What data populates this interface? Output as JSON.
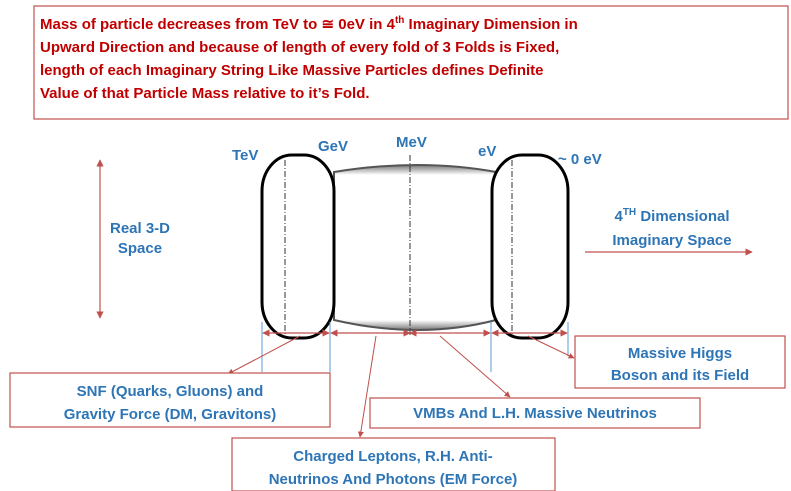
{
  "header": {
    "lines": [
      {
        "before": "Mass of particle decreases from TeV to ≅ 0eV in 4",
        "sup": "th",
        "after": " Imaginary Dimension in"
      },
      {
        "text": "Upward Direction and because of length of every fold of 3 Folds is Fixed,"
      },
      {
        "text": "length of each Imaginary String Like Massive Particles defines Definite"
      },
      {
        "text": "Value of that Particle Mass relative to it’s Fold."
      }
    ]
  },
  "energy_labels": [
    "TeV",
    "GeV",
    "MeV",
    "eV",
    "~ 0 eV"
  ],
  "real_space": [
    "Real 3-D",
    "Space"
  ],
  "imaginary_space": {
    "num": "4",
    "sup": "TH",
    "rest": " Dimensional",
    "line2": "Imaginary Space"
  },
  "boxes": [
    {
      "lines": [
        "SNF (Quarks, Gluons) and",
        "Gravity Force (DM, Gravitons)"
      ]
    },
    {
      "lines": [
        "Charged Leptons, R.H. Anti-",
        "Neutrinos And Photons (EM Force)"
      ]
    },
    {
      "lines": [
        "VMBs And L.H. Massive Neutrinos"
      ]
    },
    {
      "lines": [
        "Massive Higgs",
        "Boson and its Field"
      ]
    }
  ]
}
